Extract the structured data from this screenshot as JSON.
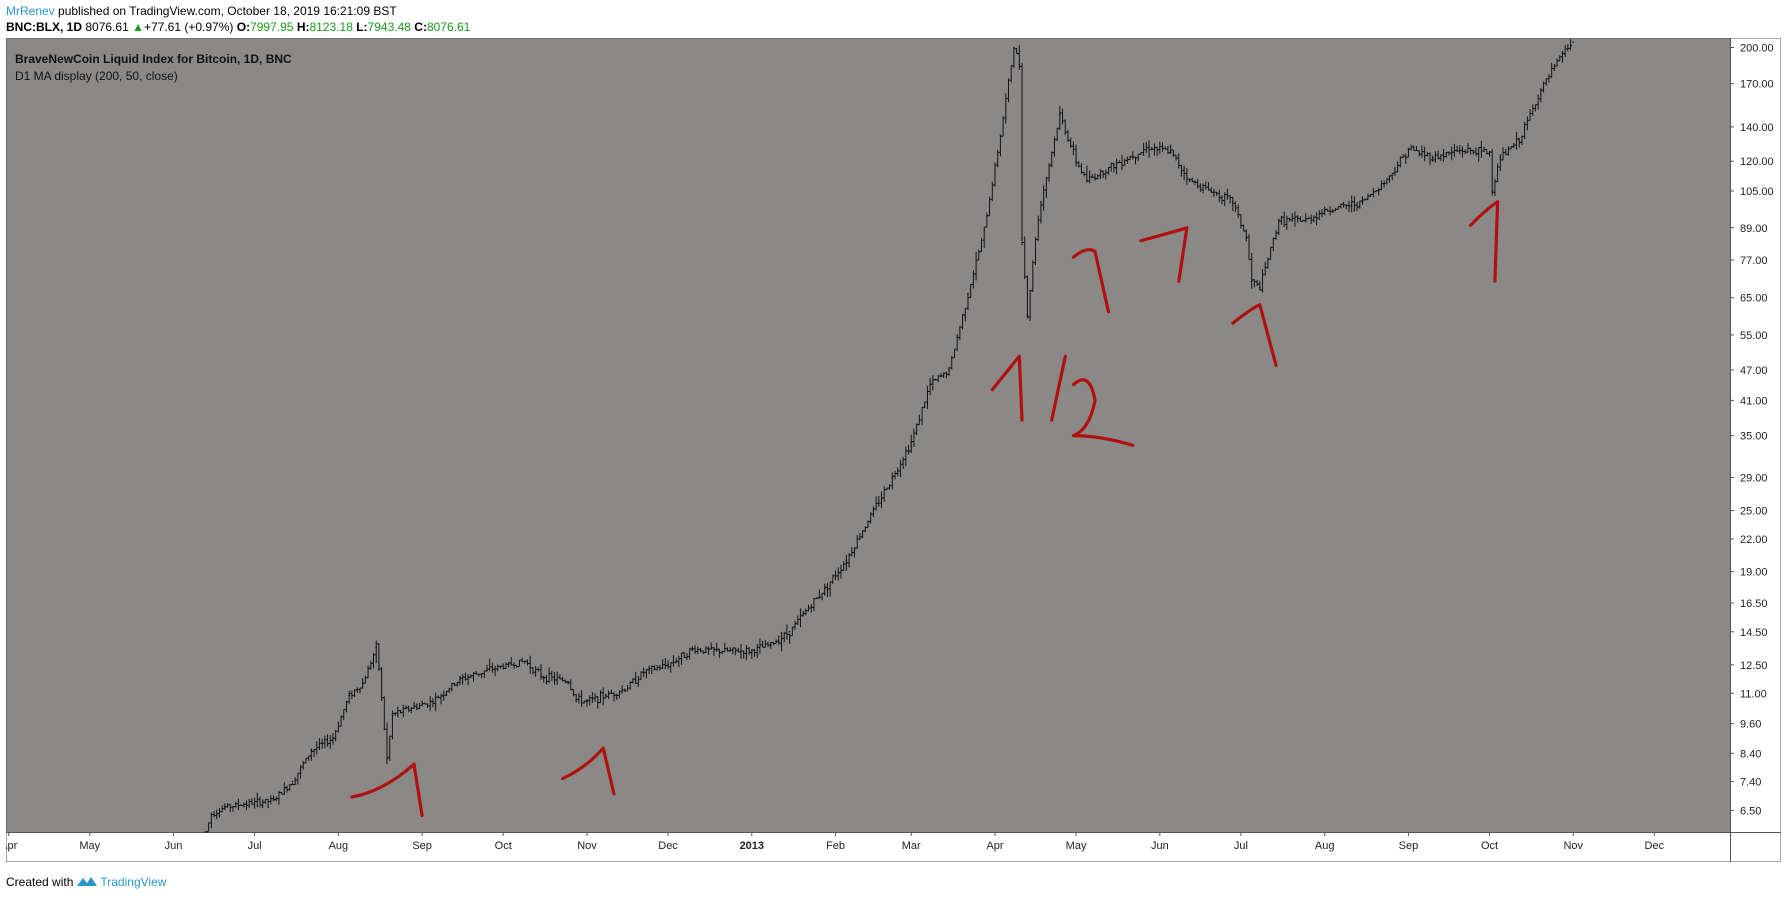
{
  "header": {
    "author": "MrRenev",
    "published_text": "published on TradingView.com, October 18, 2019 16:21:09 BST",
    "symbol": "BNC:BLX, 1D",
    "last": "8076.61",
    "change": "+77.61 (+0.97%)",
    "o_label": "O:",
    "o_value": "7997.95",
    "h_label": "H:",
    "h_value": "8123.18",
    "l_label": "L:",
    "l_value": "7943.48",
    "c_label": "C:",
    "c_value": "8076.61"
  },
  "legend": {
    "title": "BraveNewCoin Liquid Index for Bitcoin, 1D, BNC",
    "indicator": "D1 MA display (200, 50, close)"
  },
  "footer": {
    "created_with": "Created with",
    "brand": "TradingView"
  },
  "colors": {
    "chart_background": "#8b8988",
    "candles": "#111111",
    "annotations": "#b01010",
    "accent": "#2a97c9"
  },
  "chart_data": {
    "type": "line",
    "title": "BraveNewCoin Liquid Index for Bitcoin, 1D, BNC",
    "xlabel": "",
    "ylabel": "",
    "y_scale": "log",
    "ylim": [
      5.9,
      205
    ],
    "y_ticks": [
      "200.00",
      "170.00",
      "140.00",
      "120.00",
      "105.00",
      "89.00",
      "77.00",
      "65.00",
      "55.00",
      "47.00",
      "41.00",
      "35.00",
      "29.00",
      "25.00",
      "22.00",
      "19.00",
      "16.50",
      "14.50",
      "12.50",
      "11.00",
      "9.60",
      "8.40",
      "7.40",
      "6.50"
    ],
    "x_ticks": [
      {
        "label": "Apr",
        "date": "2012-04-01"
      },
      {
        "label": "May",
        "date": "2012-05-01"
      },
      {
        "label": "Jun",
        "date": "2012-06-01"
      },
      {
        "label": "Jul",
        "date": "2012-07-01"
      },
      {
        "label": "Aug",
        "date": "2012-08-01"
      },
      {
        "label": "Sep",
        "date": "2012-09-01"
      },
      {
        "label": "Oct",
        "date": "2012-10-01"
      },
      {
        "label": "Nov",
        "date": "2012-11-01"
      },
      {
        "label": "Dec",
        "date": "2012-12-01"
      },
      {
        "label": "2013",
        "date": "2013-01-01"
      },
      {
        "label": "Feb",
        "date": "2013-02-01"
      },
      {
        "label": "Mar",
        "date": "2013-03-01"
      },
      {
        "label": "Apr",
        "date": "2013-04-01"
      },
      {
        "label": "May",
        "date": "2013-05-01"
      },
      {
        "label": "Jun",
        "date": "2013-06-01"
      },
      {
        "label": "Jul",
        "date": "2013-07-01"
      },
      {
        "label": "Aug",
        "date": "2013-08-01"
      },
      {
        "label": "Sep",
        "date": "2013-09-01"
      },
      {
        "label": "Oct",
        "date": "2013-10-01"
      },
      {
        "label": "Nov",
        "date": "2013-11-01"
      },
      {
        "label": "Dec",
        "date": "2013-12-01"
      }
    ],
    "grid": false,
    "series": [
      {
        "values": [
          {
            "x": "2012-06-13",
            "y": 5.9
          },
          {
            "x": "2012-06-15",
            "y": 6.4
          },
          {
            "x": "2012-06-20",
            "y": 6.6
          },
          {
            "x": "2012-06-28",
            "y": 6.7
          },
          {
            "x": "2012-07-08",
            "y": 6.8
          },
          {
            "x": "2012-07-15",
            "y": 7.4
          },
          {
            "x": "2012-07-22",
            "y": 8.5
          },
          {
            "x": "2012-07-30",
            "y": 9.0
          },
          {
            "x": "2012-08-05",
            "y": 10.9
          },
          {
            "x": "2012-08-10",
            "y": 11.5
          },
          {
            "x": "2012-08-15",
            "y": 13.5
          },
          {
            "x": "2012-08-16",
            "y": 12.3
          },
          {
            "x": "2012-08-19",
            "y": 8.2
          },
          {
            "x": "2012-08-21",
            "y": 10.0
          },
          {
            "x": "2012-08-28",
            "y": 10.3
          },
          {
            "x": "2012-09-05",
            "y": 10.6
          },
          {
            "x": "2012-09-15",
            "y": 11.7
          },
          {
            "x": "2012-09-25",
            "y": 12.2
          },
          {
            "x": "2012-10-03",
            "y": 12.5
          },
          {
            "x": "2012-10-09",
            "y": 12.7
          },
          {
            "x": "2012-10-15",
            "y": 11.9
          },
          {
            "x": "2012-10-25",
            "y": 11.6
          },
          {
            "x": "2012-10-28",
            "y": 10.7
          },
          {
            "x": "2012-11-01",
            "y": 10.6
          },
          {
            "x": "2012-11-08",
            "y": 10.9
          },
          {
            "x": "2012-11-15",
            "y": 11.2
          },
          {
            "x": "2012-11-22",
            "y": 12.1
          },
          {
            "x": "2012-12-01",
            "y": 12.5
          },
          {
            "x": "2012-12-10",
            "y": 13.4
          },
          {
            "x": "2012-12-20",
            "y": 13.3
          },
          {
            "x": "2013-01-01",
            "y": 13.3
          },
          {
            "x": "2013-01-08",
            "y": 13.7
          },
          {
            "x": "2013-01-15",
            "y": 14.5
          },
          {
            "x": "2013-01-20",
            "y": 15.7
          },
          {
            "x": "2013-01-28",
            "y": 17.6
          },
          {
            "x": "2013-02-05",
            "y": 20.0
          },
          {
            "x": "2013-02-15",
            "y": 25.0
          },
          {
            "x": "2013-02-22",
            "y": 29.0
          },
          {
            "x": "2013-03-01",
            "y": 34.0
          },
          {
            "x": "2013-03-08",
            "y": 44.0
          },
          {
            "x": "2013-03-15",
            "y": 47.0
          },
          {
            "x": "2013-03-22",
            "y": 66.0
          },
          {
            "x": "2013-03-28",
            "y": 88.0
          },
          {
            "x": "2013-04-03",
            "y": 135.0
          },
          {
            "x": "2013-04-08",
            "y": 200.0
          },
          {
            "x": "2013-04-10",
            "y": 185.0
          },
          {
            "x": "2013-04-11",
            "y": 85.0
          },
          {
            "x": "2013-04-13",
            "y": 60.0
          },
          {
            "x": "2013-04-16",
            "y": 85.0
          },
          {
            "x": "2013-04-18",
            "y": 100.0
          },
          {
            "x": "2013-04-22",
            "y": 125.0
          },
          {
            "x": "2013-04-25",
            "y": 148.0
          },
          {
            "x": "2013-05-01",
            "y": 120.0
          },
          {
            "x": "2013-05-05",
            "y": 110.0
          },
          {
            "x": "2013-05-15",
            "y": 118.0
          },
          {
            "x": "2013-05-28",
            "y": 128.0
          },
          {
            "x": "2013-06-05",
            "y": 125.0
          },
          {
            "x": "2013-06-12",
            "y": 110.0
          },
          {
            "x": "2013-06-20",
            "y": 105.0
          },
          {
            "x": "2013-06-28",
            "y": 100.0
          },
          {
            "x": "2013-07-03",
            "y": 85.0
          },
          {
            "x": "2013-07-05",
            "y": 70.0
          },
          {
            "x": "2013-07-08",
            "y": 68.0
          },
          {
            "x": "2013-07-15",
            "y": 92.0
          },
          {
            "x": "2013-07-25",
            "y": 92.0
          },
          {
            "x": "2013-08-01",
            "y": 96.0
          },
          {
            "x": "2013-08-15",
            "y": 100.0
          },
          {
            "x": "2013-08-25",
            "y": 112.0
          },
          {
            "x": "2013-09-01",
            "y": 127.0
          },
          {
            "x": "2013-09-10",
            "y": 122.0
          },
          {
            "x": "2013-09-20",
            "y": 126.0
          },
          {
            "x": "2013-10-01",
            "y": 125.0
          },
          {
            "x": "2013-10-02",
            "y": 105.0
          },
          {
            "x": "2013-10-05",
            "y": 122.0
          },
          {
            "x": "2013-10-12",
            "y": 132.0
          },
          {
            "x": "2013-10-20",
            "y": 165.0
          },
          {
            "x": "2013-10-28",
            "y": 195.0
          },
          {
            "x": "2013-11-01",
            "y": 205.0
          }
        ]
      }
    ],
    "annotations": [
      "1",
      "1",
      "1/2",
      "1",
      "7",
      "1",
      "1"
    ]
  }
}
